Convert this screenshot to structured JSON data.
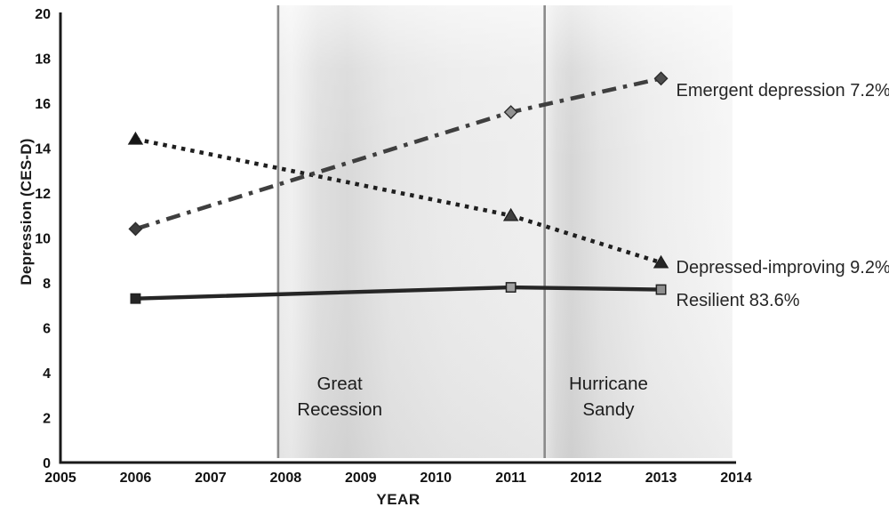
{
  "page": {
    "background": "#ffffff"
  },
  "colors": {
    "axis": "#1a1a1a",
    "tick_text": "#111111",
    "band_boundary_line": "#8a8a8a",
    "band_gray": "#e7e7e7"
  },
  "chart_data": {
    "type": "line",
    "title": "",
    "xlabel": "YEAR",
    "ylabel": "Depression (CES-D)",
    "x": [
      2006,
      2011,
      2013
    ],
    "xlim": [
      2005,
      2014
    ],
    "ylim": [
      0,
      20
    ],
    "x_ticks": [
      2005,
      2006,
      2007,
      2008,
      2009,
      2010,
      2011,
      2012,
      2013,
      2014
    ],
    "y_ticks": [
      0,
      2,
      4,
      6,
      8,
      10,
      12,
      14,
      16,
      18,
      20
    ],
    "grid": false,
    "legend_position": "right-of-last-point",
    "series": [
      {
        "name": "Emergent depression",
        "label": "Emergent depression 7.2%",
        "percent": "7.2%",
        "values": [
          10.4,
          15.6,
          17.1
        ],
        "line_style": "dashdot",
        "marker": "diamond",
        "color": "#3f3f3f"
      },
      {
        "name": "Depressed-improving",
        "label": "Depressed-improving 9.2%",
        "percent": "9.2%",
        "values": [
          14.4,
          11.0,
          8.9
        ],
        "line_style": "dotted",
        "marker": "triangle",
        "color": "#1f1f1f"
      },
      {
        "name": "Resilient",
        "label": "Resilient 83.6%",
        "percent": "83.6%",
        "values": [
          7.3,
          7.8,
          7.7
        ],
        "line_style": "solid",
        "marker": "square",
        "color": "#262626"
      }
    ],
    "annotations": [
      {
        "label": "Great\nRecession",
        "x_range": [
          2007.9,
          2011.45
        ],
        "text_x": 2008.72
      },
      {
        "label": "Hurricane\nSandy",
        "x_range": [
          2011.45,
          2013.95
        ],
        "text_x": 2012.3
      }
    ]
  }
}
